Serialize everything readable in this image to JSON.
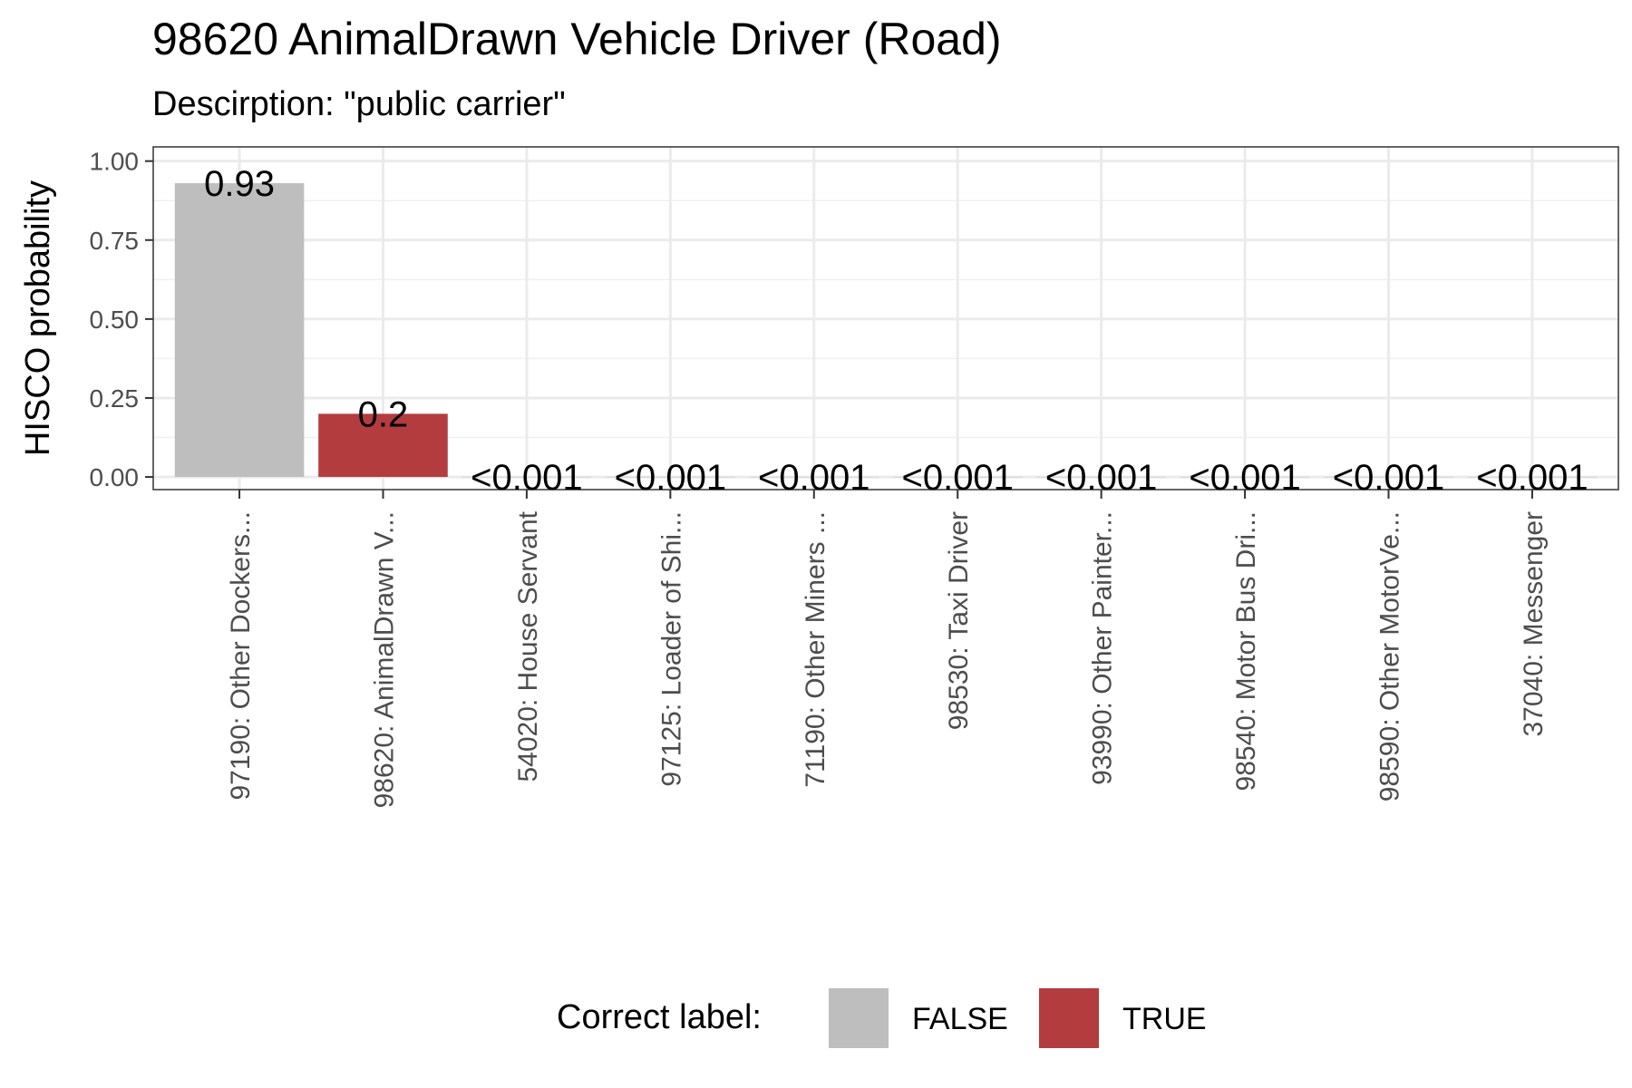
{
  "chart_data": {
    "type": "bar",
    "title": "98620 AnimalDrawn Vehicle Driver (Road)",
    "subtitle": "Descirption: \"public carrier\"",
    "xlabel": "",
    "ylabel": "HISCO probability",
    "ylim": [
      -0.04,
      1.045
    ],
    "y_ticks": [
      0.0,
      0.25,
      0.5,
      0.75,
      1.0
    ],
    "y_tick_labels": [
      "0.00",
      "0.25",
      "0.50",
      "0.75",
      "1.00"
    ],
    "grid": true,
    "legend_position": "bottom",
    "categories": [
      "97190: Other Dockers...",
      "98620: AnimalDrawn V...",
      "54020: House Servant",
      "97125: Loader of Shi...",
      "71190: Other Miners ...",
      "98530: Taxi Driver",
      "93990: Other Painter...",
      "98540: Motor Bus Dri...",
      "98590: Other MotorVe...",
      "37040: Messenger"
    ],
    "values": [
      0.93,
      0.2,
      0.0005,
      0.0005,
      0.0005,
      0.0005,
      0.0005,
      0.0005,
      0.0005,
      0.0005
    ],
    "value_labels": [
      "0.93",
      "0.2",
      "<0.001",
      "<0.001",
      "<0.001",
      "<0.001",
      "<0.001",
      "<0.001",
      "<0.001",
      "<0.001"
    ],
    "correct": [
      "FALSE",
      "TRUE",
      "FALSE",
      "FALSE",
      "FALSE",
      "FALSE",
      "FALSE",
      "FALSE",
      "FALSE",
      "FALSE"
    ],
    "legend": {
      "title": "Correct label:",
      "entries": [
        {
          "label": "FALSE",
          "color": "#bebebe"
        },
        {
          "label": "TRUE",
          "color": "#b33c3f"
        }
      ]
    }
  }
}
